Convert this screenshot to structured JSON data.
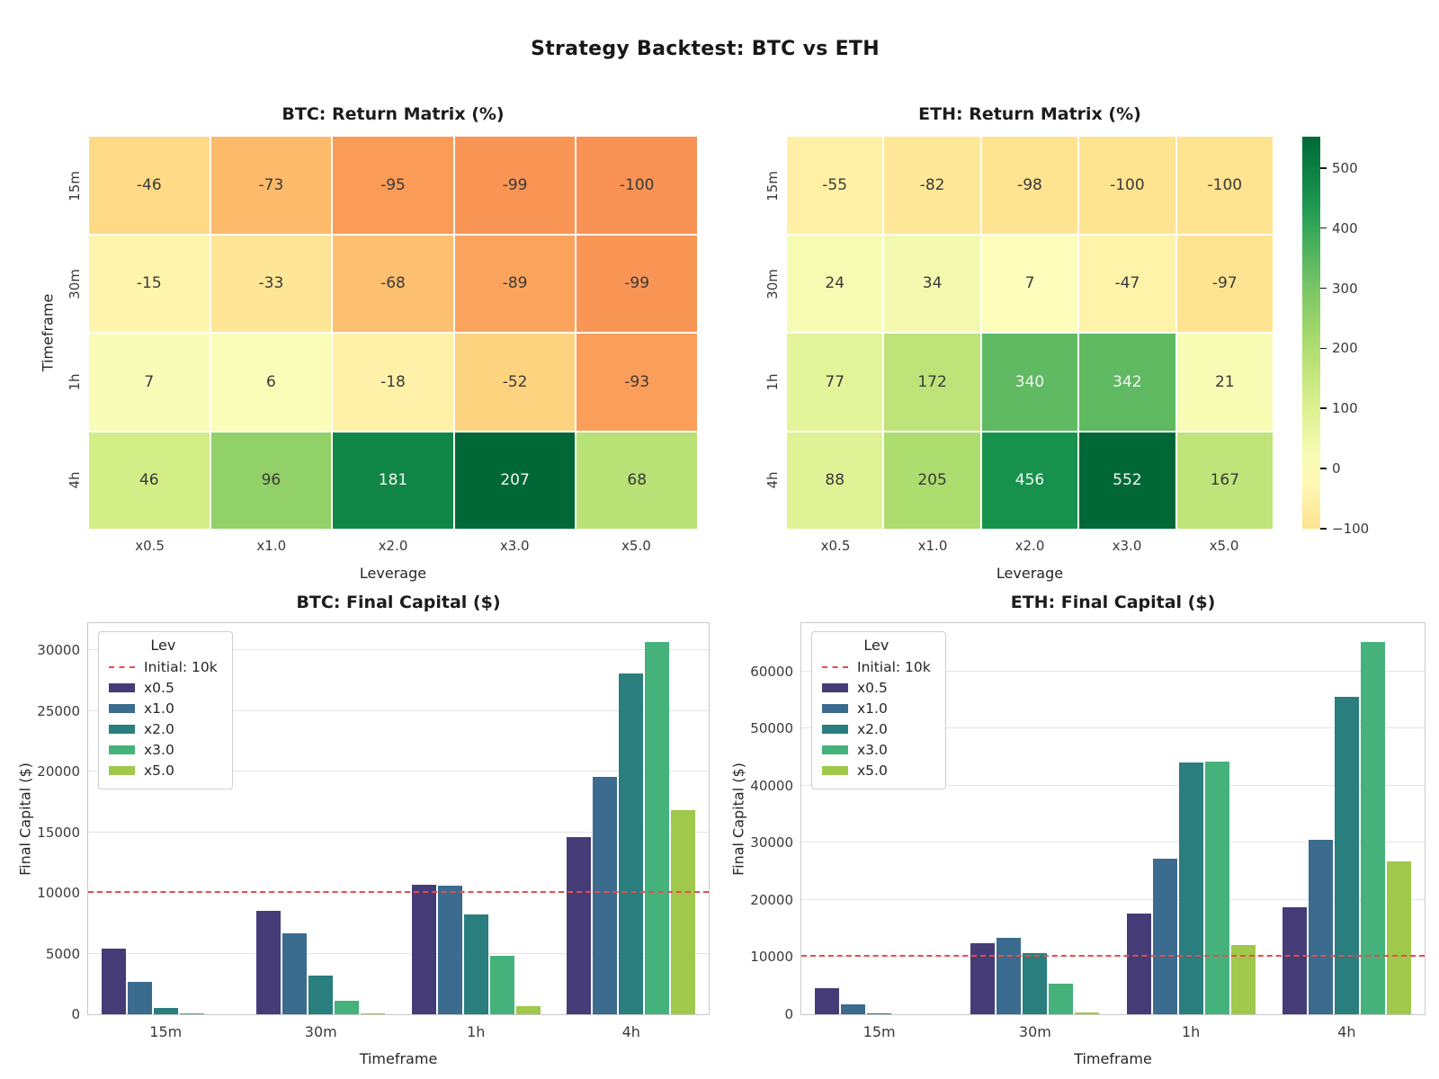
{
  "suptitle": "Strategy Backtest: BTC vs ETH",
  "palette": {
    "levels": [
      "x0.5",
      "x1.0",
      "x2.0",
      "x3.0",
      "x5.0"
    ],
    "level_colors": [
      "#453c77",
      "#3b6b8e",
      "#2a7e7e",
      "#45b27b",
      "#a0c84b"
    ],
    "initial_line_color": "#e84c4c",
    "heatmap_text_dark": "#3a3a3a",
    "heatmap_text_light": "#f5f5f5",
    "grid_color": "#e4e4e4",
    "spine_color": "#c9c9c9"
  },
  "chart_data": [
    {
      "type": "heatmap",
      "key": "btc-heatmap",
      "title": "BTC: Return Matrix (%)",
      "rows": [
        "15m",
        "30m",
        "1h",
        "4h"
      ],
      "cols": [
        "x0.5",
        "x1.0",
        "x2.0",
        "x3.0",
        "x5.0"
      ],
      "values": [
        [
          -46,
          -73,
          -95,
          -99,
          -100
        ],
        [
          -15,
          -33,
          -68,
          -89,
          -99
        ],
        [
          7,
          6,
          -18,
          -52,
          -93
        ],
        [
          46,
          96,
          181,
          207,
          68
        ]
      ],
      "xlabel": "Leverage",
      "ylabel": "Timeframe",
      "vmin": -100,
      "vmax": 207,
      "center": 0
    },
    {
      "type": "heatmap",
      "key": "eth-heatmap",
      "title": "ETH: Return Matrix (%)",
      "rows": [
        "15m",
        "30m",
        "1h",
        "4h"
      ],
      "cols": [
        "x0.5",
        "x1.0",
        "x2.0",
        "x3.0",
        "x5.0"
      ],
      "values": [
        [
          -55,
          -82,
          -98,
          -100,
          -100
        ],
        [
          24,
          34,
          7,
          -47,
          -97
        ],
        [
          77,
          172,
          340,
          342,
          21
        ],
        [
          88,
          205,
          456,
          552,
          167
        ]
      ],
      "xlabel": "Leverage",
      "ylabel": "",
      "vmin": -100,
      "vmax": 552,
      "center": 0,
      "colorbar": {
        "ticks": [
          500,
          400,
          300,
          200,
          100,
          0,
          -100
        ]
      }
    },
    {
      "type": "bar",
      "key": "btc-bars",
      "title": "BTC: Final Capital ($)",
      "xlabel": "Timeframe",
      "ylabel": "Final Capital ($)",
      "categories": [
        "15m",
        "30m",
        "1h",
        "4h"
      ],
      "series": [
        {
          "name": "x0.5",
          "values": [
            5400,
            8500,
            10700,
            14600
          ]
        },
        {
          "name": "x1.0",
          "values": [
            2700,
            6700,
            10600,
            19600
          ]
        },
        {
          "name": "x2.0",
          "values": [
            500,
            3200,
            8200,
            28100
          ]
        },
        {
          "name": "x3.0",
          "values": [
            100,
            1100,
            4800,
            30700
          ]
        },
        {
          "name": "x5.0",
          "values": [
            0,
            100,
            700,
            16800
          ]
        }
      ],
      "yticks": [
        0,
        5000,
        10000,
        15000,
        20000,
        25000,
        30000
      ],
      "ylim": [
        0,
        32235
      ],
      "legend_title": "Lev",
      "ref_line": {
        "label": "Initial: 10k",
        "value": 10000
      },
      "legend_position": "upper left",
      "grid": true
    },
    {
      "type": "bar",
      "key": "eth-bars",
      "title": "ETH: Final Capital ($)",
      "xlabel": "Timeframe",
      "ylabel": "Final Capital ($)",
      "categories": [
        "15m",
        "30m",
        "1h",
        "4h"
      ],
      "series": [
        {
          "name": "x0.5",
          "values": [
            4500,
            12400,
            17700,
            18800
          ]
        },
        {
          "name": "x1.0",
          "values": [
            1800,
            13400,
            27200,
            30500
          ]
        },
        {
          "name": "x2.0",
          "values": [
            200,
            10700,
            44000,
            55600
          ]
        },
        {
          "name": "x3.0",
          "values": [
            0,
            5300,
            44200,
            65200
          ]
        },
        {
          "name": "x5.0",
          "values": [
            0,
            300,
            12100,
            26700
          ]
        }
      ],
      "yticks": [
        0,
        10000,
        20000,
        30000,
        40000,
        50000,
        60000
      ],
      "ylim": [
        0,
        68460
      ],
      "legend_title": "Lev",
      "ref_line": {
        "label": "Initial: 10k",
        "value": 10000
      },
      "legend_position": "upper left",
      "grid": true
    }
  ]
}
